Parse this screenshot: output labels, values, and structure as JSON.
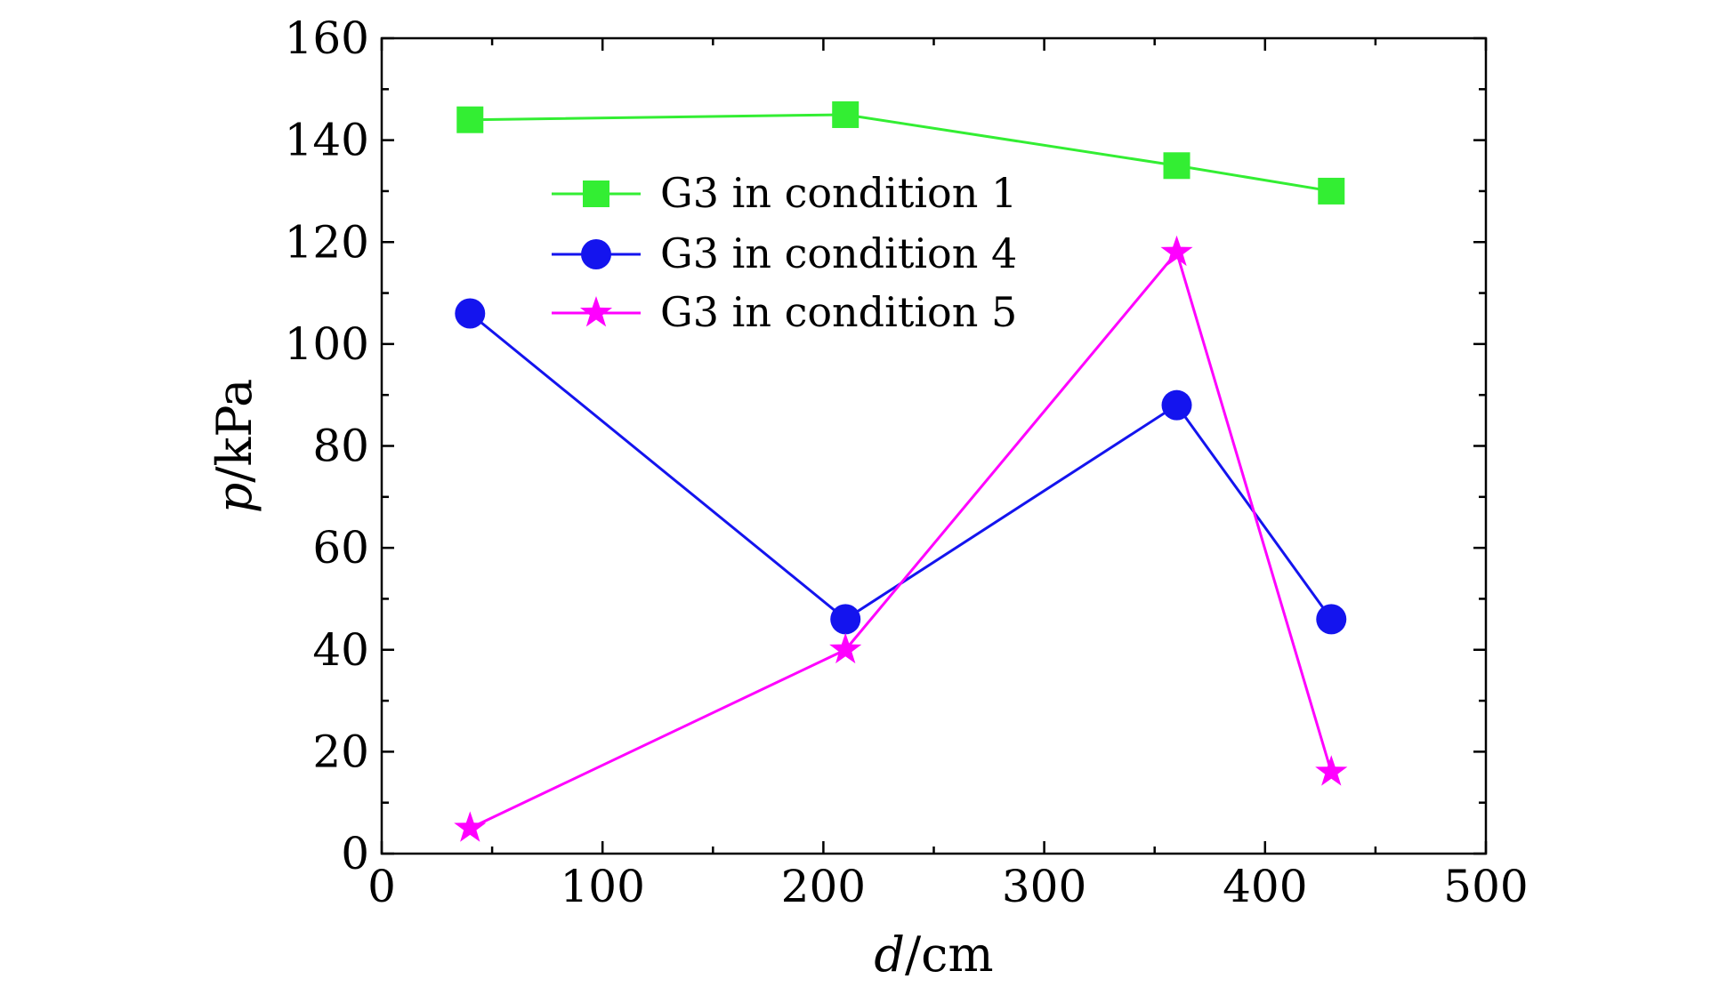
{
  "chart_data": {
    "type": "line",
    "title": "",
    "xlabel": {
      "var": "d",
      "unit": "/cm"
    },
    "ylabel": {
      "var": "p",
      "unit": "/kPa"
    },
    "xlim": [
      0,
      500
    ],
    "ylim": [
      0,
      160
    ],
    "xticks": [
      0,
      100,
      200,
      300,
      400,
      500
    ],
    "yticks": [
      0,
      20,
      40,
      60,
      80,
      100,
      120,
      140,
      160
    ],
    "grid": false,
    "legend_position": "upper-center",
    "series": [
      {
        "name": "G3 in condition 1",
        "color": "#33ee33",
        "marker": "square",
        "x": [
          40,
          210,
          360,
          430
        ],
        "y": [
          144,
          145,
          135,
          130
        ]
      },
      {
        "name": "G3 in condition 4",
        "color": "#1414ee",
        "marker": "circle",
        "x": [
          40,
          210,
          360,
          430
        ],
        "y": [
          106,
          46,
          88,
          46
        ]
      },
      {
        "name": "G3 in condition 5",
        "color": "#ff00ff",
        "marker": "star",
        "x": [
          40,
          210,
          360,
          430
        ],
        "y": [
          5,
          40,
          118,
          16
        ]
      }
    ]
  }
}
